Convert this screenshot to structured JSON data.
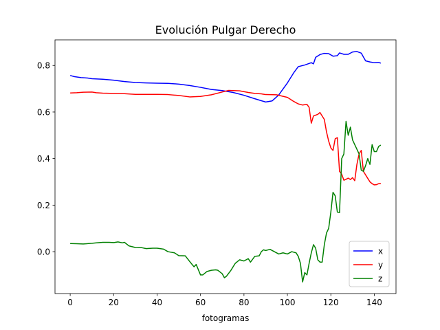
{
  "chart_data": {
    "type": "line",
    "title": "Evolución Pulgar Derecho",
    "xlabel": "fotogramas",
    "ylabel": "",
    "xlim": [
      -7,
      150
    ],
    "ylim": [
      -0.18,
      0.91
    ],
    "xticks": [
      0,
      20,
      40,
      60,
      80,
      100,
      120,
      140
    ],
    "yticks": [
      0.0,
      0.2,
      0.4,
      0.6,
      0.8
    ],
    "ytick_labels": [
      "0.0",
      "0.2",
      "0.4",
      "0.6",
      "0.8"
    ],
    "grid": false,
    "legend_position": "lower right",
    "series": [
      {
        "name": "x",
        "color": "#0000ff",
        "points": [
          [
            0,
            0.757
          ],
          [
            2,
            0.752
          ],
          [
            5,
            0.748
          ],
          [
            8,
            0.746
          ],
          [
            10,
            0.743
          ],
          [
            15,
            0.741
          ],
          [
            20,
            0.737
          ],
          [
            25,
            0.731
          ],
          [
            30,
            0.727
          ],
          [
            35,
            0.725
          ],
          [
            40,
            0.724
          ],
          [
            45,
            0.723
          ],
          [
            50,
            0.72
          ],
          [
            55,
            0.714
          ],
          [
            60,
            0.706
          ],
          [
            65,
            0.697
          ],
          [
            70,
            0.692
          ],
          [
            75,
            0.684
          ],
          [
            80,
            0.672
          ],
          [
            85,
            0.657
          ],
          [
            90,
            0.643
          ],
          [
            93,
            0.648
          ],
          [
            96,
            0.673
          ],
          [
            100,
            0.725
          ],
          [
            103,
            0.77
          ],
          [
            105,
            0.795
          ],
          [
            108,
            0.802
          ],
          [
            111,
            0.812
          ],
          [
            112,
            0.807
          ],
          [
            113,
            0.835
          ],
          [
            115,
            0.847
          ],
          [
            117,
            0.852
          ],
          [
            119,
            0.851
          ],
          [
            121,
            0.84
          ],
          [
            123,
            0.842
          ],
          [
            124,
            0.854
          ],
          [
            126,
            0.848
          ],
          [
            128,
            0.848
          ],
          [
            130,
            0.858
          ],
          [
            132,
            0.86
          ],
          [
            134,
            0.853
          ],
          [
            136,
            0.82
          ],
          [
            138,
            0.815
          ],
          [
            140,
            0.812
          ],
          [
            142,
            0.813
          ],
          [
            143,
            0.81
          ]
        ]
      },
      {
        "name": "y",
        "color": "#ff0000",
        "points": [
          [
            0,
            0.682
          ],
          [
            3,
            0.683
          ],
          [
            6,
            0.685
          ],
          [
            10,
            0.686
          ],
          [
            12,
            0.683
          ],
          [
            15,
            0.681
          ],
          [
            20,
            0.68
          ],
          [
            25,
            0.679
          ],
          [
            28,
            0.677
          ],
          [
            30,
            0.676
          ],
          [
            35,
            0.676
          ],
          [
            40,
            0.676
          ],
          [
            45,
            0.675
          ],
          [
            50,
            0.671
          ],
          [
            55,
            0.665
          ],
          [
            60,
            0.667
          ],
          [
            65,
            0.674
          ],
          [
            70,
            0.686
          ],
          [
            73,
            0.693
          ],
          [
            78,
            0.691
          ],
          [
            82,
            0.684
          ],
          [
            85,
            0.68
          ],
          [
            88,
            0.678
          ],
          [
            90,
            0.675
          ],
          [
            95,
            0.674
          ],
          [
            100,
            0.663
          ],
          [
            103,
            0.645
          ],
          [
            105,
            0.635
          ],
          [
            107,
            0.63
          ],
          [
            109,
            0.633
          ],
          [
            110,
            0.62
          ],
          [
            111,
            0.552
          ],
          [
            112,
            0.583
          ],
          [
            114,
            0.59
          ],
          [
            115,
            0.598
          ],
          [
            117,
            0.568
          ],
          [
            118,
            0.515
          ],
          [
            119,
            0.475
          ],
          [
            120,
            0.446
          ],
          [
            121,
            0.435
          ],
          [
            122,
            0.485
          ],
          [
            123,
            0.49
          ],
          [
            124,
            0.345
          ],
          [
            125,
            0.333
          ],
          [
            126,
            0.307
          ],
          [
            127,
            0.311
          ],
          [
            128,
            0.316
          ],
          [
            129,
            0.31
          ],
          [
            130,
            0.318
          ],
          [
            131,
            0.305
          ],
          [
            132,
            0.375
          ],
          [
            133,
            0.42
          ],
          [
            134,
            0.435
          ],
          [
            135,
            0.345
          ],
          [
            136,
            0.33
          ],
          [
            137,
            0.315
          ],
          [
            138,
            0.3
          ],
          [
            139,
            0.292
          ],
          [
            140,
            0.287
          ],
          [
            141,
            0.288
          ],
          [
            142,
            0.292
          ],
          [
            143,
            0.293
          ]
        ]
      },
      {
        "name": "z",
        "color": "#008000",
        "points": [
          [
            0,
            0.035
          ],
          [
            3,
            0.034
          ],
          [
            6,
            0.033
          ],
          [
            10,
            0.036
          ],
          [
            12,
            0.038
          ],
          [
            15,
            0.04
          ],
          [
            18,
            0.04
          ],
          [
            20,
            0.039
          ],
          [
            22,
            0.042
          ],
          [
            24,
            0.038
          ],
          [
            25,
            0.04
          ],
          [
            27,
            0.025
          ],
          [
            30,
            0.018
          ],
          [
            33,
            0.017
          ],
          [
            35,
            0.013
          ],
          [
            38,
            0.015
          ],
          [
            40,
            0.015
          ],
          [
            43,
            0.011
          ],
          [
            45,
            0.0
          ],
          [
            48,
            -0.005
          ],
          [
            50,
            -0.017
          ],
          [
            53,
            -0.018
          ],
          [
            55,
            -0.042
          ],
          [
            57,
            -0.065
          ],
          [
            58,
            -0.055
          ],
          [
            60,
            -0.1
          ],
          [
            61,
            -0.1
          ],
          [
            63,
            -0.085
          ],
          [
            65,
            -0.08
          ],
          [
            67,
            -0.078
          ],
          [
            68,
            -0.08
          ],
          [
            70,
            -0.095
          ],
          [
            71,
            -0.112
          ],
          [
            72,
            -0.105
          ],
          [
            74,
            -0.08
          ],
          [
            76,
            -0.05
          ],
          [
            78,
            -0.035
          ],
          [
            80,
            -0.04
          ],
          [
            82,
            -0.03
          ],
          [
            83,
            -0.045
          ],
          [
            85,
            -0.02
          ],
          [
            87,
            -0.018
          ],
          [
            88,
            0.0
          ],
          [
            89,
            0.008
          ],
          [
            90,
            0.005
          ],
          [
            92,
            0.01
          ],
          [
            94,
            0.0
          ],
          [
            96,
            -0.01
          ],
          [
            98,
            -0.005
          ],
          [
            100,
            -0.01
          ],
          [
            102,
            0.0
          ],
          [
            104,
            -0.005
          ],
          [
            105,
            -0.02
          ],
          [
            106,
            -0.05
          ],
          [
            107,
            -0.13
          ],
          [
            108,
            -0.09
          ],
          [
            109,
            -0.1
          ],
          [
            110,
            -0.05
          ],
          [
            111,
            -0.005
          ],
          [
            112,
            0.03
          ],
          [
            113,
            0.015
          ],
          [
            114,
            -0.035
          ],
          [
            115,
            -0.045
          ],
          [
            116,
            -0.045
          ],
          [
            117,
            0.03
          ],
          [
            118,
            0.08
          ],
          [
            119,
            0.1
          ],
          [
            120,
            0.17
          ],
          [
            121,
            0.255
          ],
          [
            122,
            0.24
          ],
          [
            123,
            0.17
          ],
          [
            124,
            0.168
          ],
          [
            125,
            0.4
          ],
          [
            126,
            0.42
          ],
          [
            127,
            0.56
          ],
          [
            128,
            0.5
          ],
          [
            129,
            0.535
          ],
          [
            130,
            0.48
          ],
          [
            131,
            0.46
          ],
          [
            132,
            0.44
          ],
          [
            133,
            0.42
          ],
          [
            134,
            0.35
          ],
          [
            135,
            0.345
          ],
          [
            136,
            0.37
          ],
          [
            137,
            0.4
          ],
          [
            138,
            0.375
          ],
          [
            139,
            0.46
          ],
          [
            140,
            0.43
          ],
          [
            141,
            0.43
          ],
          [
            142,
            0.452
          ],
          [
            143,
            0.458
          ]
        ]
      }
    ]
  }
}
